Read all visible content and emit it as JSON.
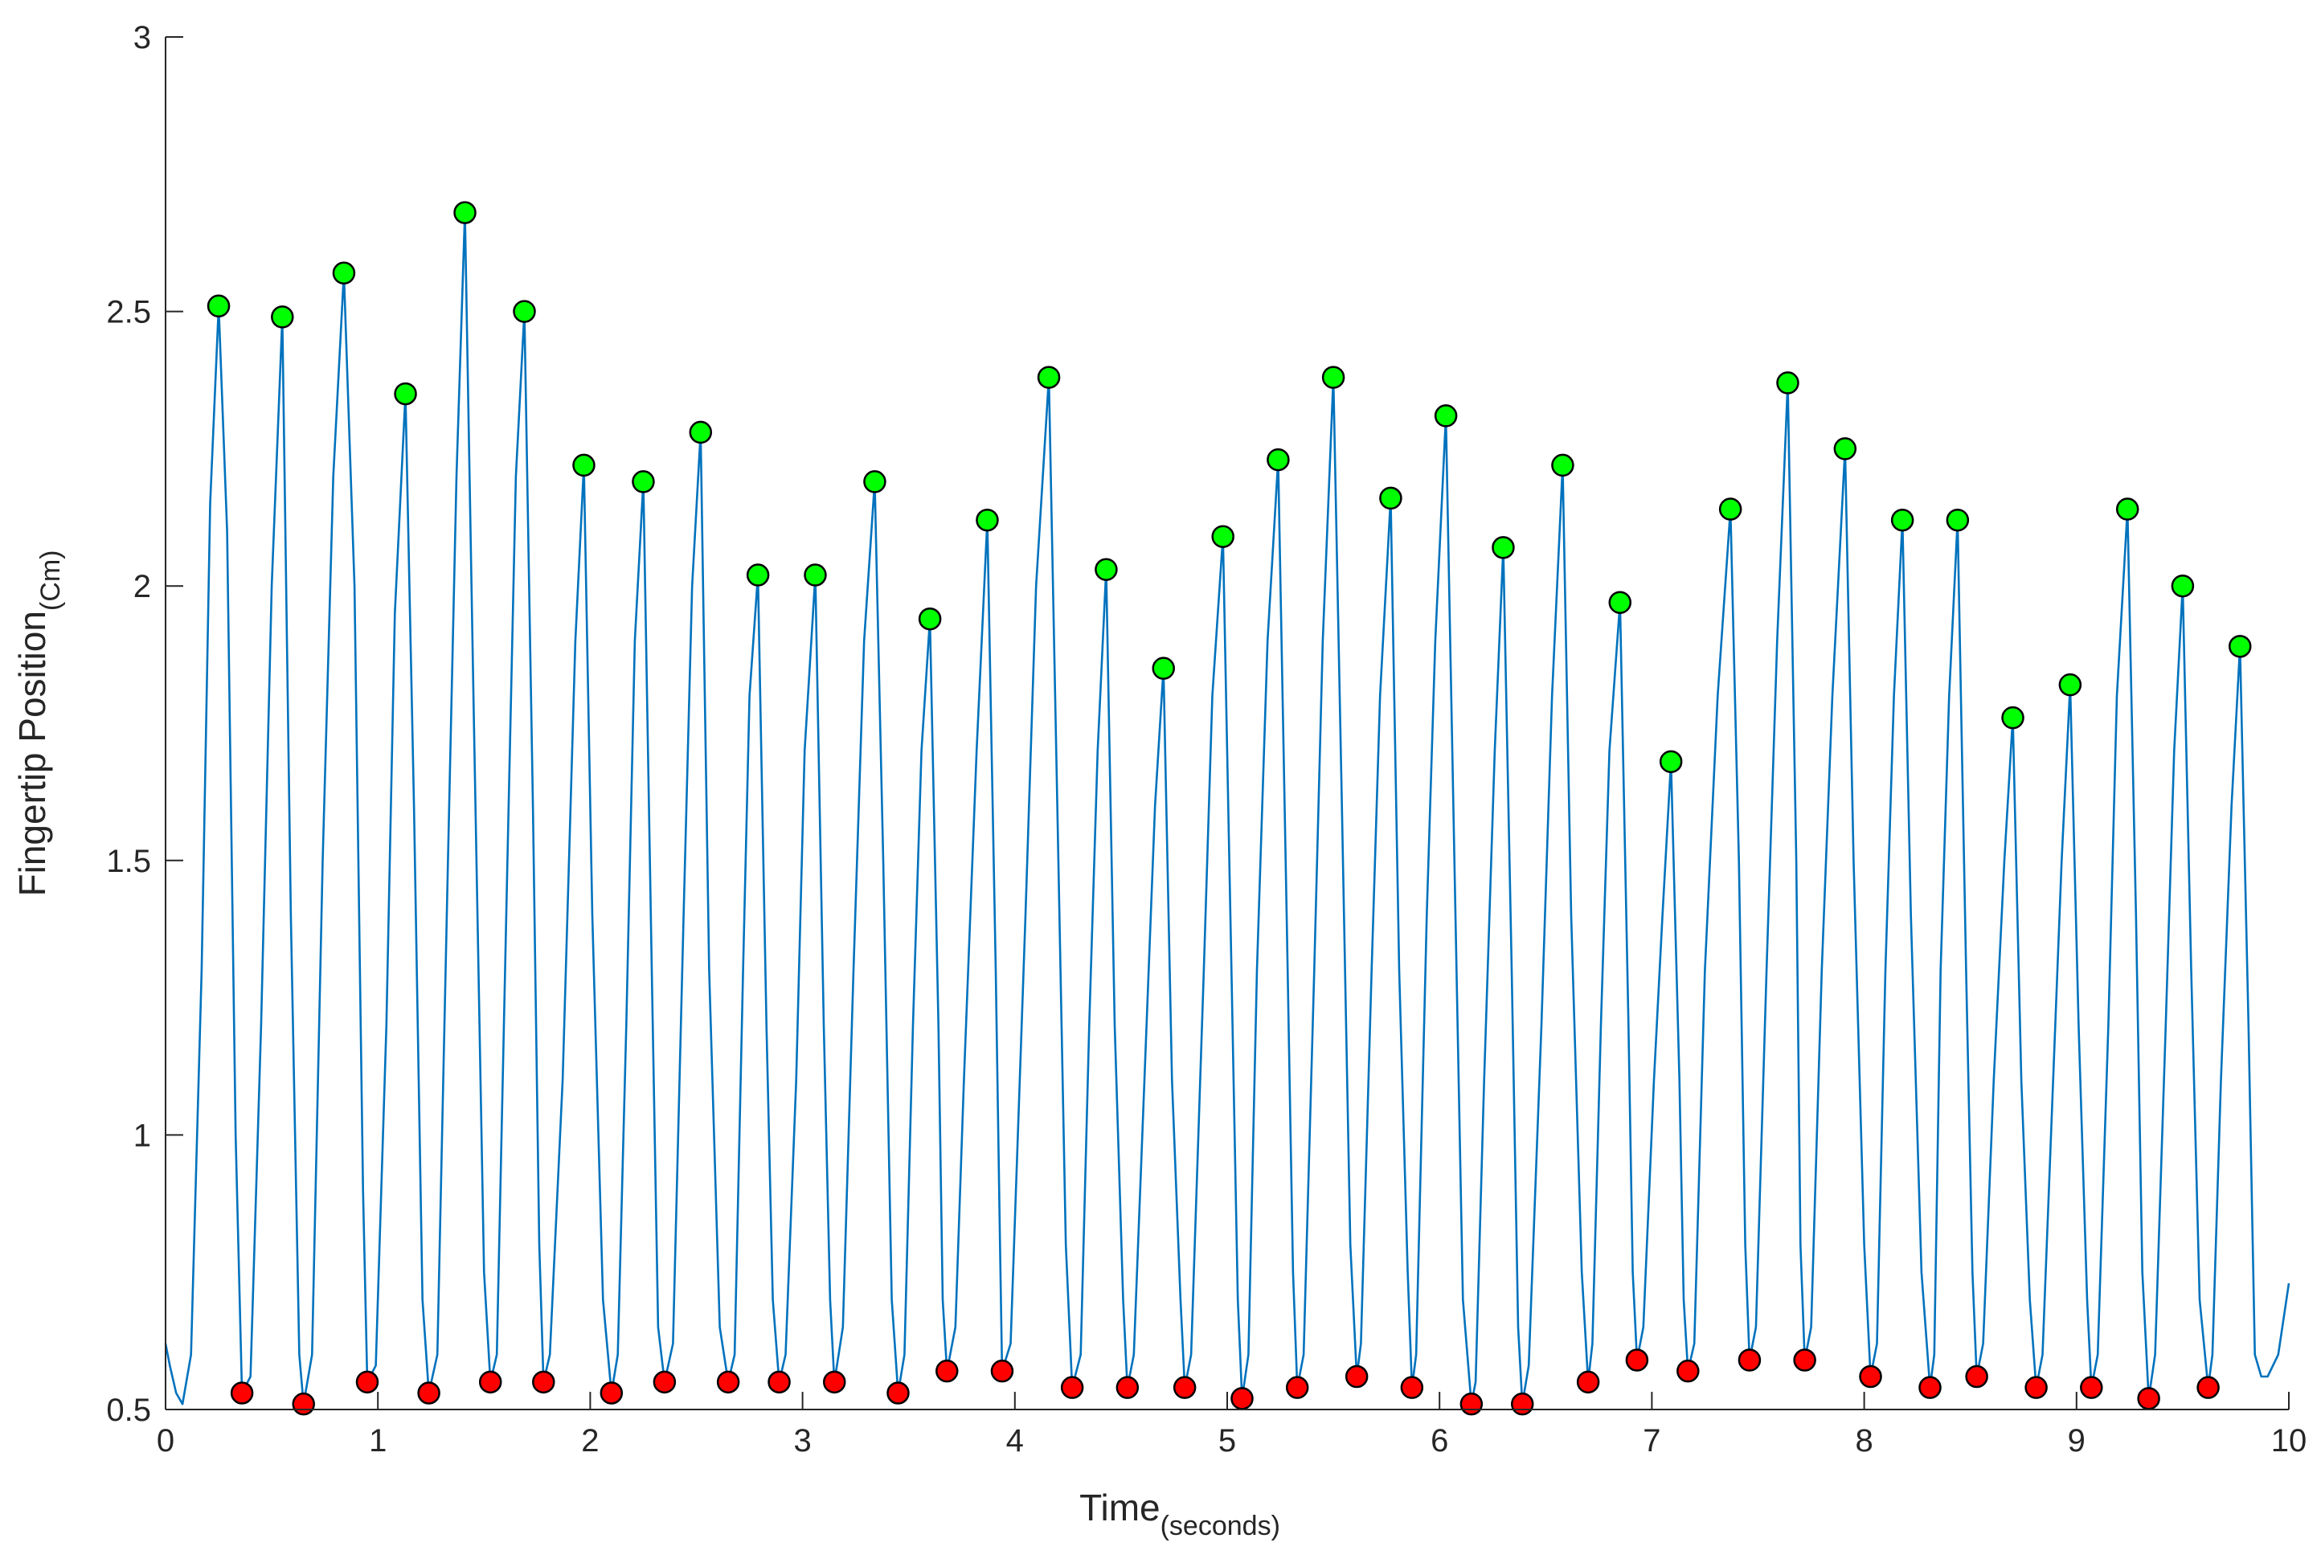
{
  "chart_data": {
    "type": "line",
    "xlabel": "Time",
    "xlabel_sub": "(seconds)",
    "ylabel": "Fingertip Position",
    "ylabel_sub": "(Cm)",
    "xlim": [
      0,
      10
    ],
    "ylim": [
      0.5,
      3
    ],
    "x_ticks": [
      0,
      1,
      2,
      3,
      4,
      5,
      6,
      7,
      8,
      9,
      10
    ],
    "x_tick_labels": [
      "0",
      "1",
      "2",
      "3",
      "4",
      "5",
      "6",
      "7",
      "8",
      "9",
      "10"
    ],
    "y_ticks": [
      0.5,
      1,
      1.5,
      2,
      2.5,
      3
    ],
    "y_tick_labels": [
      "0.5",
      "1",
      "1.5",
      "2",
      "2.5",
      "3"
    ],
    "grid": false,
    "colors": {
      "line": "#0072BD",
      "peak": "#00FF00",
      "trough": "#FF0000",
      "marker_edge": "#000000",
      "axis": "#262626"
    },
    "peaks": [
      {
        "x": 0.25,
        "y": 2.51
      },
      {
        "x": 0.55,
        "y": 2.49
      },
      {
        "x": 0.84,
        "y": 2.57
      },
      {
        "x": 1.13,
        "y": 2.35
      },
      {
        "x": 1.41,
        "y": 2.68
      },
      {
        "x": 1.69,
        "y": 2.5
      },
      {
        "x": 1.97,
        "y": 2.22
      },
      {
        "x": 2.25,
        "y": 2.19
      },
      {
        "x": 2.52,
        "y": 2.28
      },
      {
        "x": 2.79,
        "y": 2.02
      },
      {
        "x": 3.06,
        "y": 2.02
      },
      {
        "x": 3.34,
        "y": 2.19
      },
      {
        "x": 3.6,
        "y": 1.94
      },
      {
        "x": 3.87,
        "y": 2.12
      },
      {
        "x": 4.16,
        "y": 2.38
      },
      {
        "x": 4.43,
        "y": 2.03
      },
      {
        "x": 4.7,
        "y": 1.85
      },
      {
        "x": 4.98,
        "y": 2.09
      },
      {
        "x": 5.24,
        "y": 2.23
      },
      {
        "x": 5.5,
        "y": 2.38
      },
      {
        "x": 5.77,
        "y": 2.16
      },
      {
        "x": 6.03,
        "y": 2.31
      },
      {
        "x": 6.3,
        "y": 2.07
      },
      {
        "x": 6.58,
        "y": 2.22
      },
      {
        "x": 6.85,
        "y": 1.97
      },
      {
        "x": 7.09,
        "y": 1.68
      },
      {
        "x": 7.37,
        "y": 2.14
      },
      {
        "x": 7.64,
        "y": 2.37
      },
      {
        "x": 7.91,
        "y": 2.25
      },
      {
        "x": 8.18,
        "y": 2.12
      },
      {
        "x": 8.44,
        "y": 2.12
      },
      {
        "x": 8.7,
        "y": 1.76
      },
      {
        "x": 8.97,
        "y": 1.82
      },
      {
        "x": 9.24,
        "y": 2.14
      },
      {
        "x": 9.5,
        "y": 2.0
      },
      {
        "x": 9.77,
        "y": 1.89
      }
    ],
    "troughs": [
      {
        "x": 0.36,
        "y": 0.53
      },
      {
        "x": 0.65,
        "y": 0.51
      },
      {
        "x": 0.95,
        "y": 0.55
      },
      {
        "x": 1.24,
        "y": 0.53
      },
      {
        "x": 1.53,
        "y": 0.55
      },
      {
        "x": 1.78,
        "y": 0.55
      },
      {
        "x": 2.1,
        "y": 0.53
      },
      {
        "x": 2.35,
        "y": 0.55
      },
      {
        "x": 2.65,
        "y": 0.55
      },
      {
        "x": 2.89,
        "y": 0.55
      },
      {
        "x": 3.15,
        "y": 0.55
      },
      {
        "x": 3.45,
        "y": 0.53
      },
      {
        "x": 3.68,
        "y": 0.57
      },
      {
        "x": 3.94,
        "y": 0.57
      },
      {
        "x": 4.27,
        "y": 0.54
      },
      {
        "x": 4.53,
        "y": 0.54
      },
      {
        "x": 4.8,
        "y": 0.54
      },
      {
        "x": 5.07,
        "y": 0.52
      },
      {
        "x": 5.33,
        "y": 0.54
      },
      {
        "x": 5.61,
        "y": 0.56
      },
      {
        "x": 5.87,
        "y": 0.54
      },
      {
        "x": 6.15,
        "y": 0.51
      },
      {
        "x": 6.39,
        "y": 0.51
      },
      {
        "x": 6.7,
        "y": 0.55
      },
      {
        "x": 6.93,
        "y": 0.59
      },
      {
        "x": 7.17,
        "y": 0.57
      },
      {
        "x": 7.46,
        "y": 0.59
      },
      {
        "x": 7.72,
        "y": 0.59
      },
      {
        "x": 8.03,
        "y": 0.56
      },
      {
        "x": 8.31,
        "y": 0.54
      },
      {
        "x": 8.53,
        "y": 0.56
      },
      {
        "x": 8.81,
        "y": 0.54
      },
      {
        "x": 9.07,
        "y": 0.54
      },
      {
        "x": 9.34,
        "y": 0.52
      },
      {
        "x": 9.62,
        "y": 0.54
      }
    ],
    "series": [
      {
        "x": [
          0,
          0.02,
          0.05,
          0.08,
          0.12,
          0.17,
          0.21,
          0.25,
          0.29,
          0.33,
          0.36,
          0.4,
          0.45,
          0.5,
          0.55,
          0.59,
          0.63,
          0.65,
          0.69,
          0.74,
          0.79,
          0.84,
          0.89,
          0.93,
          0.95,
          0.99,
          1.04,
          1.08,
          1.13,
          1.17,
          1.21,
          1.24,
          1.28,
          1.33,
          1.37,
          1.41,
          1.45,
          1.5,
          1.53,
          1.56,
          1.61,
          1.65,
          1.69,
          1.73,
          1.76,
          1.78,
          1.81,
          1.87,
          1.93,
          1.97,
          2.01,
          2.06,
          2.1,
          2.13,
          2.17,
          2.21,
          2.25,
          2.29,
          2.32,
          2.35,
          2.39,
          2.44,
          2.48,
          2.52,
          2.56,
          2.61,
          2.65,
          2.68,
          2.72,
          2.75,
          2.79,
          2.83,
          2.86,
          2.89,
          2.92,
          2.97,
          3.01,
          3.06,
          3.1,
          3.13,
          3.15,
          3.19,
          3.24,
          3.29,
          3.34,
          3.38,
          3.42,
          3.45,
          3.48,
          3.52,
          3.56,
          3.6,
          3.64,
          3.66,
          3.68,
          3.72,
          3.76,
          3.82,
          3.87,
          3.91,
          3.93,
          3.94,
          3.98,
          4.05,
          4.1,
          4.16,
          4.2,
          4.24,
          4.27,
          4.31,
          4.35,
          4.39,
          4.43,
          4.47,
          4.51,
          4.53,
          4.56,
          4.61,
          4.66,
          4.7,
          4.74,
          4.78,
          4.8,
          4.83,
          4.89,
          4.93,
          4.98,
          5.02,
          5.05,
          5.07,
          5.1,
          5.14,
          5.19,
          5.24,
          5.28,
          5.31,
          5.33,
          5.36,
          5.41,
          5.45,
          5.5,
          5.54,
          5.58,
          5.61,
          5.63,
          5.68,
          5.72,
          5.77,
          5.81,
          5.85,
          5.87,
          5.89,
          5.94,
          5.98,
          6.03,
          6.07,
          6.11,
          6.15,
          6.17,
          6.21,
          6.26,
          6.3,
          6.34,
          6.37,
          6.39,
          6.42,
          6.48,
          6.53,
          6.58,
          6.62,
          6.67,
          6.7,
          6.72,
          6.76,
          6.8,
          6.85,
          6.89,
          6.91,
          6.93,
          6.96,
          7.01,
          7.05,
          7.09,
          7.13,
          7.15,
          7.17,
          7.2,
          7.25,
          7.31,
          7.37,
          7.41,
          7.44,
          7.46,
          7.49,
          7.54,
          7.59,
          7.64,
          7.68,
          7.7,
          7.72,
          7.75,
          7.8,
          7.85,
          7.91,
          7.95,
          8.0,
          8.03,
          8.06,
          8.1,
          8.14,
          8.18,
          8.22,
          8.27,
          8.31,
          8.33,
          8.36,
          8.4,
          8.44,
          8.48,
          8.51,
          8.53,
          8.56,
          8.61,
          8.66,
          8.7,
          8.74,
          8.78,
          8.81,
          8.84,
          8.89,
          8.93,
          8.97,
          9.01,
          9.05,
          9.07,
          9.1,
          9.15,
          9.19,
          9.24,
          9.28,
          9.31,
          9.34,
          9.37,
          9.42,
          9.46,
          9.5,
          9.54,
          9.58,
          9.62,
          9.64,
          9.68,
          9.73,
          9.77,
          9.81,
          9.84,
          9.87,
          9.9,
          9.95,
          10
        ],
        "y": [
          0.62,
          0.58,
          0.53,
          0.51,
          0.6,
          1.3,
          2.15,
          2.51,
          2.1,
          1.0,
          0.53,
          0.56,
          1.2,
          2.0,
          2.49,
          1.4,
          0.6,
          0.51,
          0.6,
          1.5,
          2.2,
          2.57,
          2.0,
          0.9,
          0.55,
          0.58,
          1.2,
          1.95,
          2.35,
          1.6,
          0.7,
          0.53,
          0.6,
          1.5,
          2.2,
          2.68,
          1.8,
          0.75,
          0.55,
          0.6,
          1.5,
          2.2,
          2.5,
          1.6,
          0.8,
          0.55,
          0.6,
          1.1,
          1.9,
          2.22,
          1.4,
          0.7,
          0.53,
          0.6,
          1.2,
          1.9,
          2.19,
          1.3,
          0.65,
          0.55,
          0.62,
          1.4,
          2.0,
          2.28,
          1.3,
          0.65,
          0.55,
          0.6,
          1.3,
          1.8,
          2.02,
          1.2,
          0.7,
          0.55,
          0.6,
          1.1,
          1.7,
          2.02,
          1.2,
          0.7,
          0.55,
          0.65,
          1.3,
          1.9,
          2.19,
          1.5,
          0.7,
          0.53,
          0.6,
          1.2,
          1.7,
          1.94,
          1.2,
          0.7,
          0.57,
          0.65,
          1.1,
          1.7,
          2.12,
          1.3,
          0.8,
          0.57,
          0.62,
          1.4,
          2.0,
          2.38,
          1.6,
          0.8,
          0.54,
          0.6,
          1.2,
          1.7,
          2.03,
          1.2,
          0.7,
          0.54,
          0.6,
          1.1,
          1.6,
          1.85,
          1.1,
          0.7,
          0.54,
          0.6,
          1.3,
          1.8,
          2.09,
          1.3,
          0.7,
          0.52,
          0.6,
          1.3,
          1.9,
          2.23,
          1.4,
          0.75,
          0.54,
          0.6,
          1.3,
          1.9,
          2.38,
          1.6,
          0.8,
          0.56,
          0.62,
          1.3,
          1.8,
          2.16,
          1.3,
          0.75,
          0.54,
          0.6,
          1.4,
          1.9,
          2.31,
          1.5,
          0.7,
          0.51,
          0.55,
          1.1,
          1.7,
          2.07,
          1.3,
          0.65,
          0.51,
          0.58,
          1.2,
          1.8,
          2.22,
          1.4,
          0.75,
          0.55,
          0.62,
          1.2,
          1.7,
          1.97,
          1.2,
          0.75,
          0.59,
          0.65,
          1.1,
          1.4,
          1.68,
          1.1,
          0.7,
          0.57,
          0.62,
          1.3,
          1.8,
          2.14,
          1.5,
          0.8,
          0.59,
          0.65,
          1.3,
          1.9,
          2.37,
          1.5,
          0.8,
          0.59,
          0.65,
          1.3,
          1.8,
          2.25,
          1.5,
          0.8,
          0.56,
          0.62,
          1.3,
          1.8,
          2.12,
          1.4,
          0.75,
          0.54,
          0.6,
          1.3,
          1.8,
          2.12,
          1.3,
          0.75,
          0.56,
          0.62,
          1.1,
          1.5,
          1.76,
          1.1,
          0.7,
          0.54,
          0.6,
          1.1,
          1.5,
          1.82,
          1.2,
          0.7,
          0.54,
          0.6,
          1.2,
          1.8,
          2.14,
          1.4,
          0.75,
          0.52,
          0.6,
          1.2,
          1.7,
          2.0,
          1.3,
          0.7,
          0.54,
          0.6,
          1.1,
          1.6,
          1.89,
          1.2,
          0.6,
          0.56,
          0.56,
          0.6,
          0.73
        ]
      }
    ]
  }
}
